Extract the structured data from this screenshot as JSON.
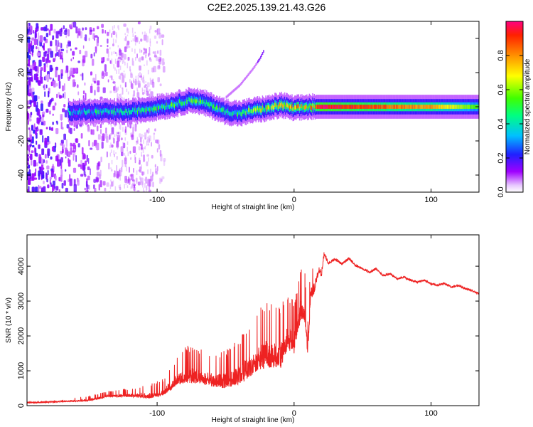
{
  "title": "C2E2.2025.139.21.43.G26",
  "chart_data": [
    {
      "type": "heatmap",
      "xlabel": "Height of straight line (km)",
      "ylabel": "Frequency (Hz)",
      "xlim": [
        -195,
        135
      ],
      "ylim": [
        -50,
        50
      ],
      "xticks": [
        -100,
        0,
        100
      ],
      "yticks": [
        -40,
        -20,
        0,
        20,
        40
      ],
      "colorbar": {
        "label": "Normalized spectral amplitude",
        "range": [
          0,
          1
        ],
        "ticks": [
          "0.0",
          "0.2",
          "0.4",
          "0.6",
          "0.8"
        ]
      },
      "ridge": [
        [
          -165,
          -3
        ],
        [
          -140,
          -3
        ],
        [
          -120,
          -3
        ],
        [
          -105,
          -1
        ],
        [
          -90,
          1
        ],
        [
          -75,
          4
        ],
        [
          -65,
          2
        ],
        [
          -50,
          -3
        ],
        [
          -40,
          -4
        ],
        [
          -30,
          -2
        ],
        [
          -20,
          -1
        ],
        [
          -10,
          1
        ],
        [
          -5,
          0
        ],
        [
          0,
          -1
        ],
        [
          10,
          0
        ],
        [
          20,
          0
        ],
        [
          60,
          0
        ],
        [
          100,
          0
        ],
        [
          135,
          0
        ]
      ],
      "ridge_amplitude": [
        [
          -165,
          0.4
        ],
        [
          -120,
          0.5
        ],
        [
          -100,
          0.5
        ],
        [
          -70,
          0.55
        ],
        [
          -40,
          0.5
        ],
        [
          -20,
          0.7
        ],
        [
          -5,
          0.85
        ],
        [
          10,
          0.75
        ],
        [
          20,
          1.0
        ],
        [
          60,
          0.9
        ],
        [
          100,
          0.8
        ],
        [
          135,
          0.55
        ]
      ],
      "diagonal_feature": [
        [
          -50,
          5
        ],
        [
          -40,
          12
        ],
        [
          -30,
          22
        ],
        [
          -25,
          28
        ],
        [
          -22,
          33
        ]
      ]
    },
    {
      "type": "line",
      "xlabel": "Height of straight line (km)",
      "ylabel": "SNR (10 * v/v)",
      "xlim": [
        -195,
        135
      ],
      "ylim": [
        0,
        4900
      ],
      "xticks": [
        -100,
        0,
        100
      ],
      "yticks": [
        0,
        1000,
        2000,
        3000,
        4000
      ],
      "series": [
        {
          "color": "#ee2222",
          "envelope_x": [
            -195,
            -170,
            -150,
            -135,
            -120,
            -105,
            -95,
            -85,
            -78,
            -70,
            -60,
            -50,
            -40,
            -30,
            -20,
            -10,
            -5,
            0,
            5,
            8,
            10,
            12,
            15,
            18,
            20,
            22,
            25,
            30,
            35,
            40,
            45,
            50,
            55,
            60,
            65,
            70,
            75,
            80,
            85,
            90,
            95,
            100,
            105,
            110,
            115,
            120,
            125,
            130,
            135
          ],
          "envelope_y": [
            150,
            200,
            250,
            400,
            450,
            550,
            700,
            1300,
            1550,
            1500,
            1350,
            1400,
            1700,
            2300,
            2700,
            2550,
            3000,
            2800,
            3700,
            3550,
            2200,
            3900,
            3850,
            4200,
            4050,
            4600,
            4250,
            4350,
            4200,
            4350,
            4150,
            4050,
            3950,
            4050,
            3850,
            3900,
            3750,
            3800,
            3700,
            3650,
            3700,
            3600,
            3550,
            3600,
            3500,
            3550,
            3450,
            3400,
            3300
          ],
          "spread": [
            80,
            100,
            120,
            150,
            200,
            350,
            400,
            700,
            900,
            850,
            800,
            900,
            1100,
            1400,
            1600,
            1500,
            1400,
            1300,
            1200,
            1200,
            800,
            900,
            600,
            400,
            350,
            300,
            200,
            180,
            170,
            160,
            160,
            150,
            150,
            150,
            150,
            140,
            140,
            140,
            130,
            130,
            130,
            130,
            120,
            120,
            120,
            120,
            120,
            120,
            120
          ]
        }
      ]
    }
  ]
}
